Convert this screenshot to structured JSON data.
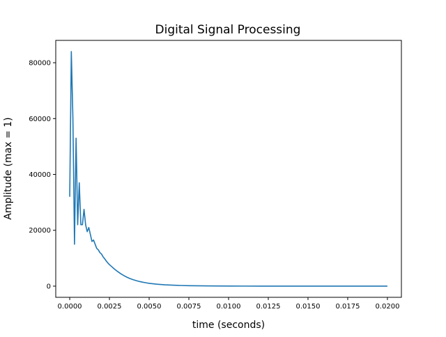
{
  "chart_data": {
    "type": "line",
    "title": "Digital Signal Processing",
    "xlabel": "time (seconds)",
    "ylabel": "Amplitude (max = 1)",
    "xlim": [
      -0.00088,
      0.02088
    ],
    "ylim": [
      -4000,
      88000
    ],
    "x_ticks": [
      0,
      0.0025,
      0.005,
      0.0075,
      0.01,
      0.0125,
      0.015,
      0.0175,
      0.02
    ],
    "x_tick_labels": [
      "0.0000",
      "0.0025",
      "0.0050",
      "0.0075",
      "0.0100",
      "0.0125",
      "0.0150",
      "0.0175",
      "0.0200"
    ],
    "y_ticks": [
      0,
      20000,
      40000,
      60000,
      80000
    ],
    "y_tick_labels": [
      "0",
      "20000",
      "40000",
      "60000",
      "80000"
    ],
    "grid": false,
    "legend": "none",
    "series": [
      {
        "color": "#1f77b4",
        "x": [
          0,
          0.0001,
          0.0002,
          0.0003,
          0.0004,
          0.0005,
          0.0006,
          0.0007,
          0.0008,
          0.0009,
          0.001,
          0.0011,
          0.0012,
          0.0013,
          0.0014,
          0.0015,
          0.0016,
          0.0017,
          0.0018,
          0.0019,
          0.002,
          0.0021,
          0.0022,
          0.0023,
          0.0024,
          0.0025,
          0.0026,
          0.0028,
          0.003,
          0.0032,
          0.0034,
          0.0036,
          0.0038,
          0.004,
          0.0042,
          0.0044,
          0.0046,
          0.0048,
          0.005,
          0.0055,
          0.006,
          0.0065,
          0.007,
          0.0075,
          0.008,
          0.009,
          0.01,
          0.011,
          0.012,
          0.013,
          0.014,
          0.015,
          0.016,
          0.017,
          0.018,
          0.019,
          0.02
        ],
        "y": [
          32000,
          84000,
          60000,
          15000,
          53000,
          22000,
          37000,
          22000,
          22000,
          27500,
          22000,
          19500,
          21000,
          18500,
          16000,
          16500,
          15000,
          13500,
          13000,
          12000,
          11500,
          10500,
          9800,
          9000,
          8300,
          7700,
          7200,
          6200,
          5300,
          4500,
          3800,
          3200,
          2700,
          2300,
          1950,
          1650,
          1400,
          1200,
          1000,
          700,
          480,
          340,
          240,
          170,
          120,
          65,
          35,
          20,
          12,
          7,
          4,
          3,
          2,
          1,
          1,
          0,
          0
        ]
      }
    ]
  }
}
